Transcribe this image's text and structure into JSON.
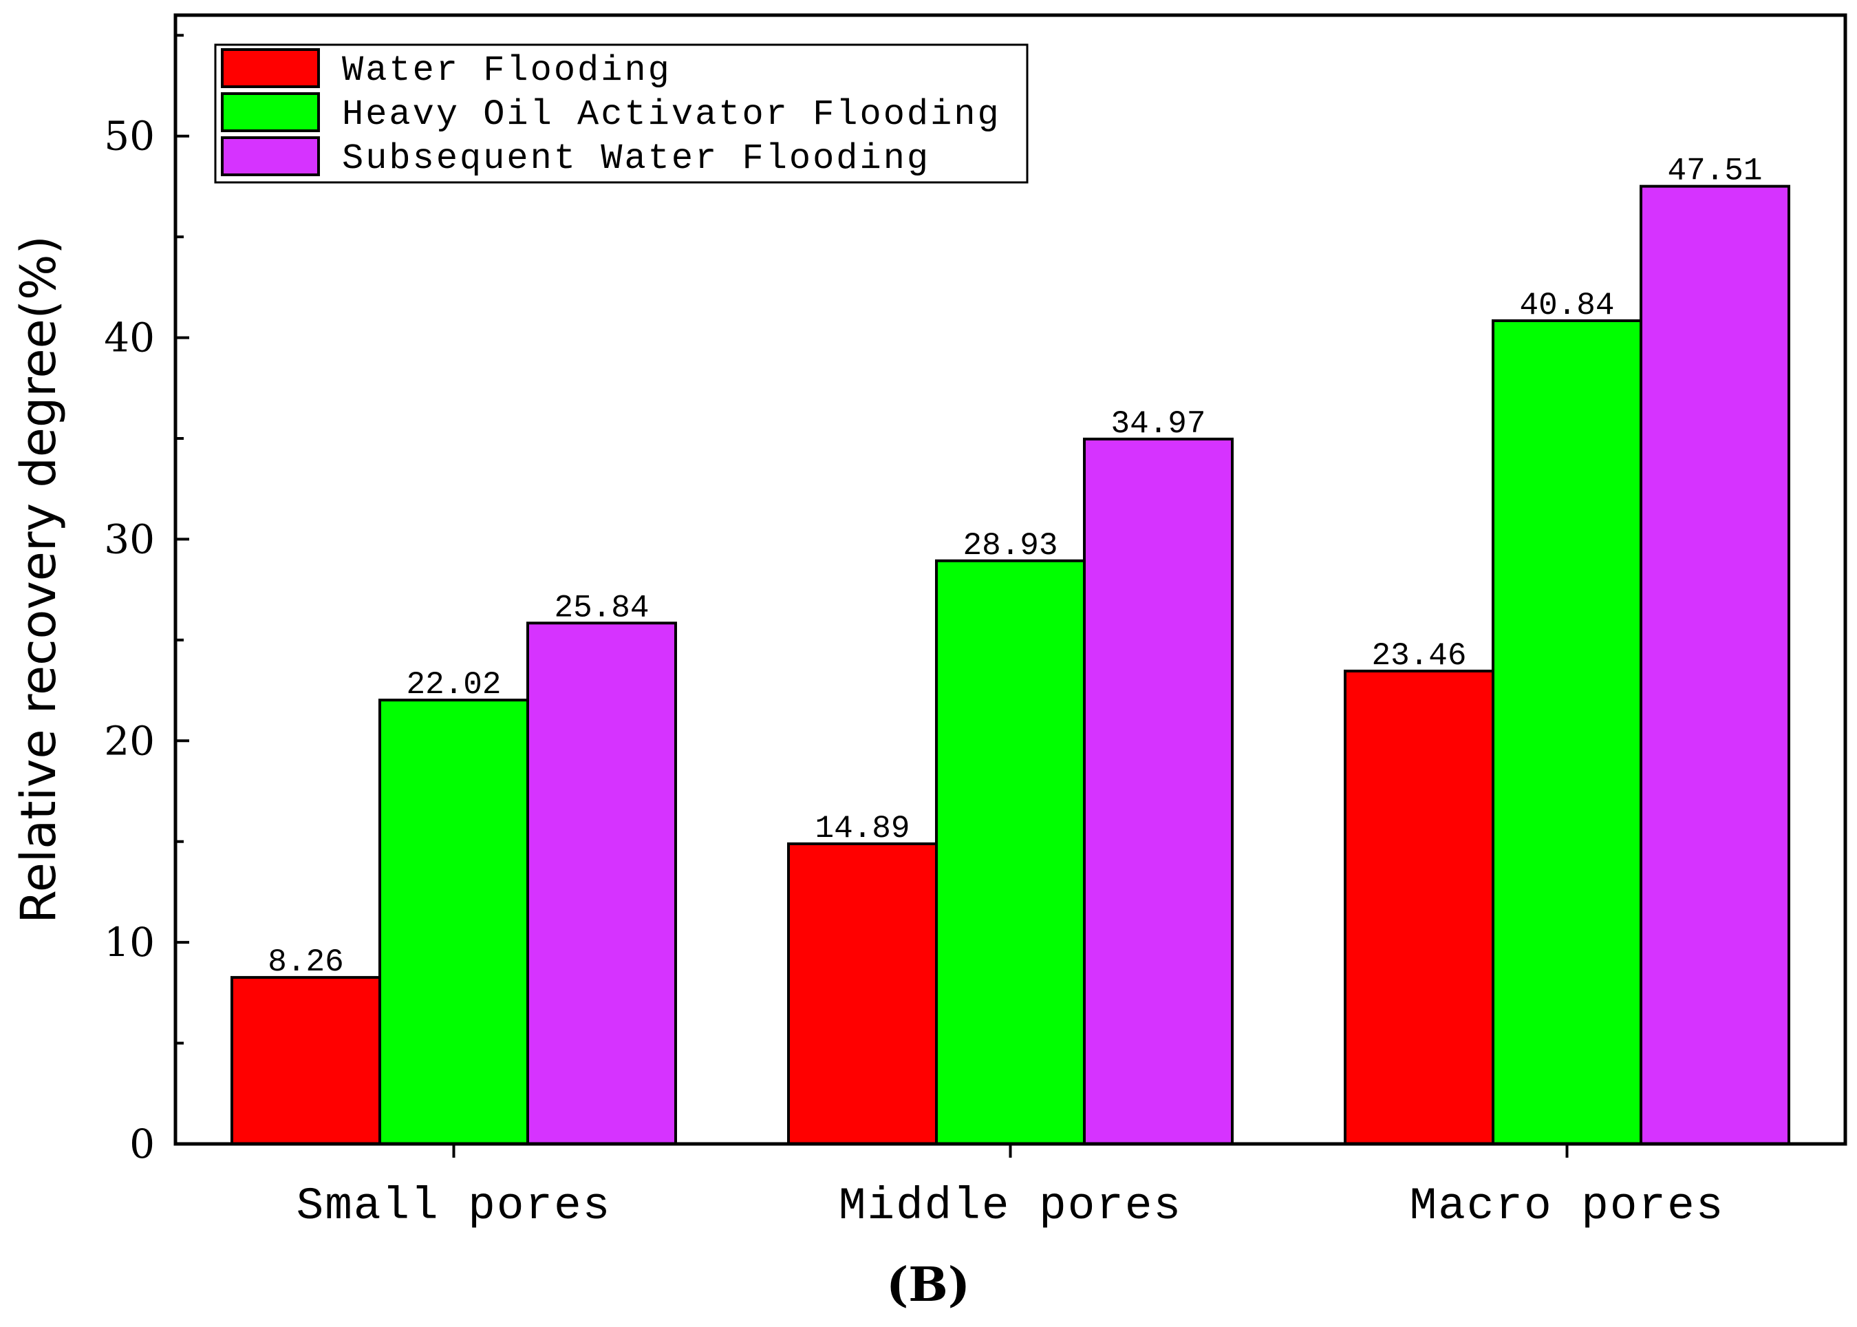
{
  "chart_data": {
    "type": "bar",
    "categories": [
      "Small pores",
      "Middle pores",
      "Macro pores"
    ],
    "series": [
      {
        "name": "Water Flooding",
        "color": "#ff0000",
        "values": [
          8.26,
          14.89,
          23.46
        ],
        "labels": [
          "8.26",
          "14.89",
          "23.46"
        ]
      },
      {
        "name": "Heavy Oil Activator Flooding",
        "color": "#00ff00",
        "values": [
          22.02,
          28.93,
          40.84
        ],
        "labels": [
          "22.02",
          "28.93",
          "40.84"
        ]
      },
      {
        "name": "Subsequent Water Flooding",
        "color": "#d633ff",
        "values": [
          25.84,
          34.97,
          47.51
        ],
        "labels": [
          "25.84",
          "34.97",
          "47.51"
        ]
      }
    ],
    "ylabel": "Relative recovery degree(%)",
    "xlabel": "",
    "ylim": [
      0,
      56
    ],
    "yticks": [
      0,
      10,
      20,
      30,
      40,
      50
    ],
    "ytick_labels": [
      "0",
      "10",
      "20",
      "30",
      "40",
      "50"
    ],
    "legend_position": "top-left",
    "grid": false,
    "caption": "(B)"
  }
}
